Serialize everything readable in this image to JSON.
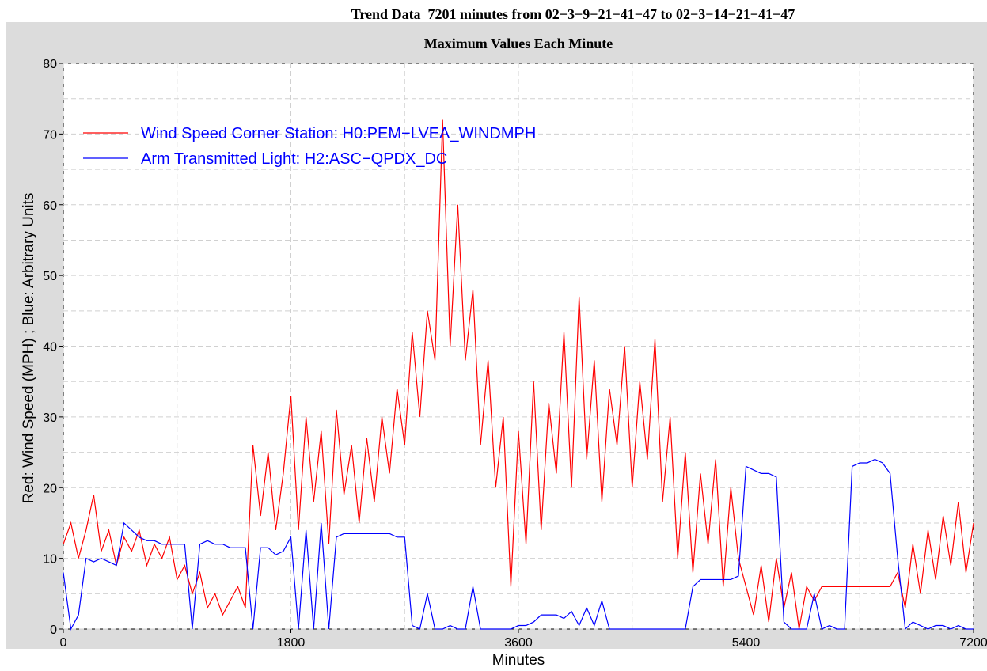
{
  "chart_data": {
    "type": "line",
    "title": "Trend Data  7201 minutes from 02−3−9−21−41−47 to 02−3−14−21−41−47",
    "subtitle": "Maximum Values Each Minute",
    "x_label": "Minutes",
    "y_label": "Red: Wind Speed (MPH) ; Blue: Arbitrary Units",
    "xlim": [
      0,
      7200
    ],
    "xticks": [
      0,
      1800,
      3600,
      5400,
      7200
    ],
    "ylim": [
      0,
      80
    ],
    "yticks": [
      0,
      10,
      20,
      30,
      40,
      50,
      60,
      70,
      80
    ],
    "grid": true,
    "legend": "upper left",
    "x": [
      0,
      60,
      120,
      180,
      240,
      300,
      360,
      420,
      480,
      540,
      600,
      660,
      720,
      780,
      840,
      900,
      960,
      1020,
      1080,
      1140,
      1200,
      1260,
      1320,
      1380,
      1440,
      1500,
      1560,
      1620,
      1680,
      1740,
      1800,
      1860,
      1920,
      1980,
      2040,
      2100,
      2160,
      2220,
      2280,
      2340,
      2400,
      2460,
      2520,
      2580,
      2640,
      2700,
      2760,
      2820,
      2880,
      2940,
      3000,
      3060,
      3120,
      3180,
      3240,
      3300,
      3360,
      3420,
      3480,
      3540,
      3600,
      3660,
      3720,
      3780,
      3840,
      3900,
      3960,
      4020,
      4080,
      4140,
      4200,
      4260,
      4320,
      4380,
      4440,
      4500,
      4560,
      4620,
      4680,
      4740,
      4800,
      4860,
      4920,
      4980,
      5040,
      5100,
      5160,
      5220,
      5280,
      5340,
      5400,
      5460,
      5520,
      5580,
      5640,
      5700,
      5760,
      5820,
      5880,
      5940,
      6000,
      6060,
      6120,
      6180,
      6240,
      6300,
      6360,
      6420,
      6480,
      6540,
      6600,
      6660,
      6720,
      6780,
      6840,
      6900,
      6960,
      7020,
      7080,
      7140,
      7200
    ],
    "series": [
      {
        "name": "Wind Speed Corner Station: H0:PEM−LVEA_WINDMPH",
        "color": "#ff0000",
        "values": [
          12,
          15,
          10,
          14,
          19,
          11,
          14,
          9,
          13,
          11,
          14,
          9,
          12,
          10,
          13,
          7,
          9,
          5,
          8,
          3,
          5,
          2,
          4,
          6,
          3,
          26,
          16,
          25,
          14,
          22,
          33,
          14,
          30,
          18,
          28,
          12,
          31,
          19,
          26,
          15,
          27,
          18,
          30,
          22,
          34,
          26,
          42,
          30,
          45,
          38,
          72,
          40,
          60,
          38,
          48,
          26,
          38,
          20,
          30,
          6,
          28,
          12,
          35,
          14,
          32,
          22,
          42,
          20,
          47,
          24,
          38,
          18,
          34,
          26,
          40,
          20,
          35,
          24,
          41,
          18,
          30,
          10,
          25,
          8,
          22,
          12,
          24,
          6,
          20,
          10,
          6,
          2,
          9,
          1,
          10,
          3,
          8,
          0,
          6,
          4,
          6,
          6,
          6,
          6,
          6,
          6,
          6,
          6,
          6,
          6,
          8,
          3,
          12,
          5,
          14,
          7,
          16,
          9,
          18,
          8,
          15
        ]
      },
      {
        "name": "Arm Transmitted Light: H2:ASC−QPDX_DC",
        "color": "#0000ff",
        "values": [
          8,
          0,
          2,
          10,
          9.5,
          10,
          9.5,
          9,
          15,
          14,
          13,
          12.5,
          12.5,
          12,
          12,
          12,
          12,
          0,
          12,
          12.5,
          12,
          12,
          11.5,
          11.5,
          11.5,
          0,
          11.5,
          11.5,
          10.5,
          11,
          13,
          0,
          14,
          0,
          15,
          0,
          13,
          13.5,
          13.5,
          13.5,
          13.5,
          13.5,
          13.5,
          13.5,
          13,
          13,
          0.5,
          0,
          5,
          0,
          0,
          0.5,
          0,
          0,
          6,
          0,
          0,
          0,
          0,
          0,
          0.5,
          0.5,
          1,
          2,
          2,
          2,
          1.5,
          2.5,
          0.5,
          3,
          0.5,
          4,
          0,
          0,
          0,
          0,
          0,
          0,
          0,
          0,
          0,
          0,
          0,
          6,
          7,
          7,
          7,
          7,
          7,
          7.5,
          23,
          22.5,
          22,
          22,
          21.5,
          1,
          0,
          0,
          0,
          5,
          0,
          0.5,
          0,
          0,
          23,
          23.5,
          23.5,
          24,
          23.5,
          22,
          10,
          0,
          1,
          0.5,
          0,
          0.5,
          0.5,
          0,
          0.5,
          0,
          0
        ]
      }
    ]
  }
}
